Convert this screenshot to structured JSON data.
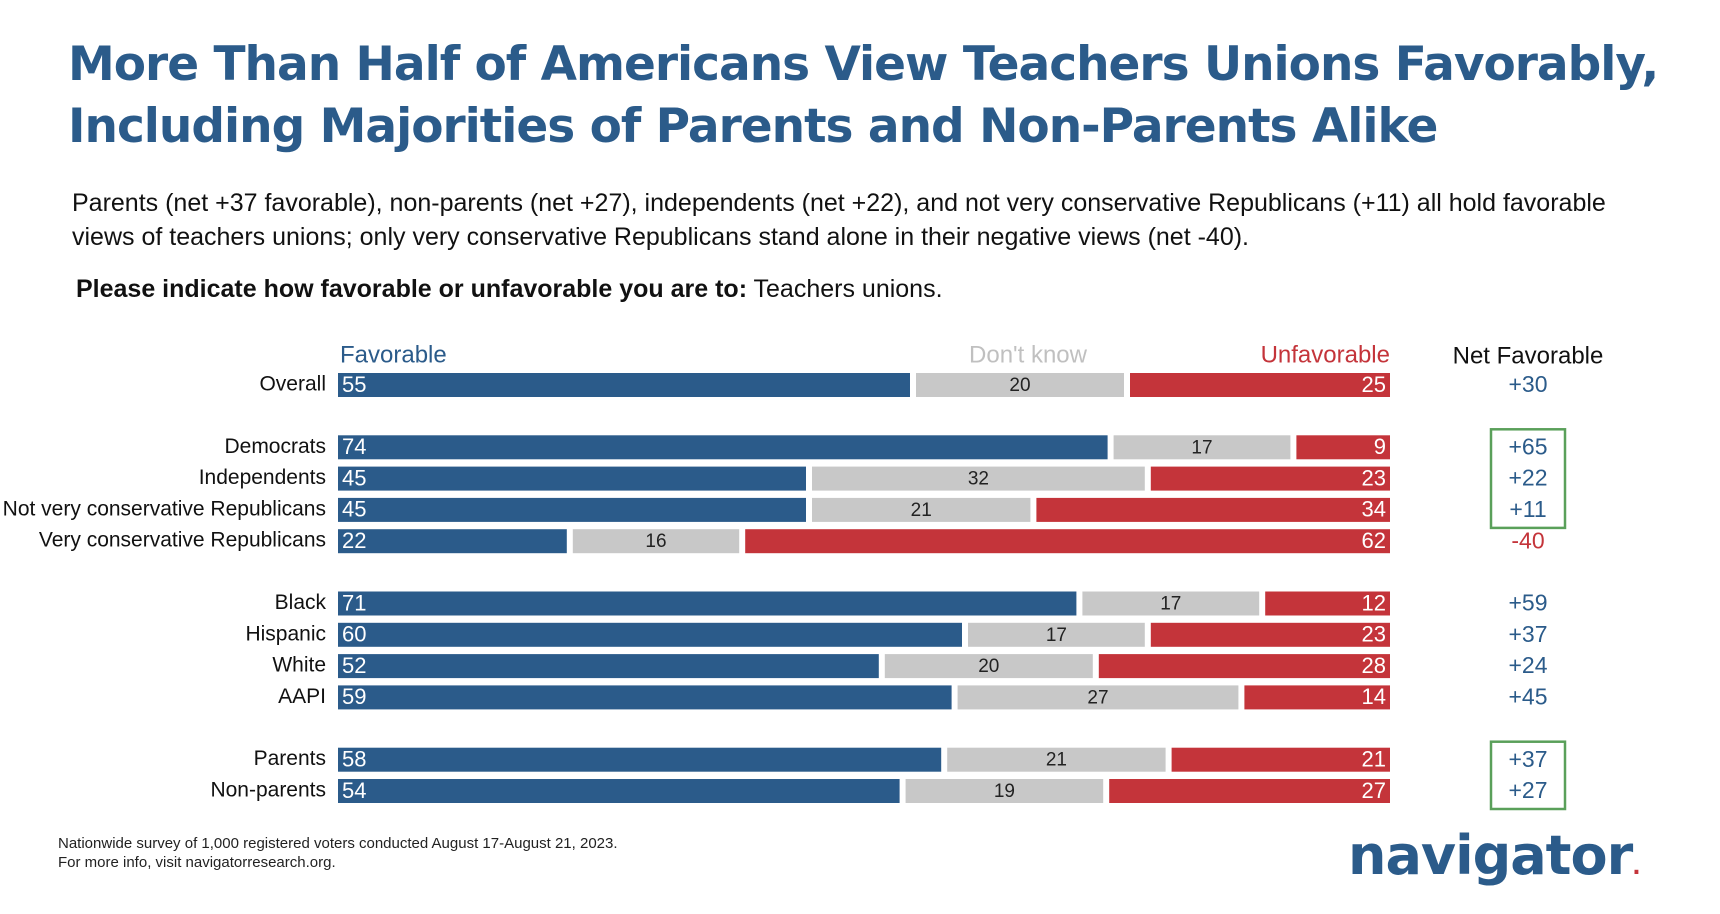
{
  "title_lines": [
    "More Than Half of Americans View Teachers Unions Favorably,",
    "Including Majorities of Parents and Non-Parents Alike"
  ],
  "subtitle_lines": [
    "Parents (net +37 favorable), non-parents (net +27), independents (net +22), and not very conservative Republicans (+11) all hold favorable",
    "views of teachers unions; only very conservative Republicans stand alone in their negative views (net -40)."
  ],
  "question": {
    "prefix": "Please indicate how favorable or unfavorable you are to:",
    "item": "Teachers unions."
  },
  "colors": {
    "favorable": "#2b5b8a",
    "dont_know": "#c8c8c8",
    "unfavorable": "#c4343a",
    "net_positive": "#2b5b8a",
    "net_negative": "#c4343a",
    "highlight_box": "#5aa05a",
    "title": "#2b5b8a"
  },
  "chart_data": {
    "type": "bar",
    "stacked": true,
    "orientation": "horizontal",
    "legend_labels": {
      "favorable": "Favorable",
      "dont_know": "Don't know",
      "unfavorable": "Unfavorable"
    },
    "net_header": "Net Favorable",
    "groups": [
      {
        "rows": [
          {
            "label": "Overall",
            "favorable": 55,
            "dont_know": 20,
            "unfavorable": 25,
            "net": "+30"
          }
        ]
      },
      {
        "highlighted_net_rows": [
          0,
          1,
          2
        ],
        "rows": [
          {
            "label": "Democrats",
            "favorable": 74,
            "dont_know": 17,
            "unfavorable": 9,
            "net": "+65"
          },
          {
            "label": "Independents",
            "favorable": 45,
            "dont_know": 32,
            "unfavorable": 23,
            "net": "+22"
          },
          {
            "label": "Not very conservative Republicans",
            "favorable": 45,
            "dont_know": 21,
            "unfavorable": 34,
            "net": "+11"
          },
          {
            "label": "Very conservative Republicans",
            "favorable": 22,
            "dont_know": 16,
            "unfavorable": 62,
            "net": "-40"
          }
        ]
      },
      {
        "rows": [
          {
            "label": "Black",
            "favorable": 71,
            "dont_know": 17,
            "unfavorable": 12,
            "net": "+59"
          },
          {
            "label": "Hispanic",
            "favorable": 60,
            "dont_know": 17,
            "unfavorable": 23,
            "net": "+37"
          },
          {
            "label": "White",
            "favorable": 52,
            "dont_know": 20,
            "unfavorable": 28,
            "net": "+24"
          },
          {
            "label": "AAPI",
            "favorable": 59,
            "dont_know": 27,
            "unfavorable": 14,
            "net": "+45"
          }
        ]
      },
      {
        "highlighted_net_rows": [
          0,
          1
        ],
        "rows": [
          {
            "label": "Parents",
            "favorable": 58,
            "dont_know": 21,
            "unfavorable": 21,
            "net": "+37"
          },
          {
            "label": "Non-parents",
            "favorable": 54,
            "dont_know": 19,
            "unfavorable": 27,
            "net": "+27"
          }
        ]
      }
    ]
  },
  "footnote_lines": [
    "Nationwide survey of 1,000 registered voters conducted August 17-August 21, 2023.",
    "For more info, visit navigatorresearch.org."
  ],
  "logo": {
    "text": "navigator",
    "dot": "."
  }
}
